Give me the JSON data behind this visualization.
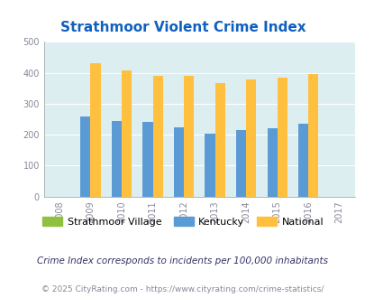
{
  "title": "Strathmoor Violent Crime Index",
  "years": [
    2008,
    2009,
    2010,
    2011,
    2012,
    2013,
    2014,
    2015,
    2016,
    2017
  ],
  "kentucky": [
    null,
    260,
    245,
    241,
    225,
    203,
    215,
    221,
    234,
    null
  ],
  "national": [
    null,
    432,
    407,
    390,
    390,
    368,
    379,
    384,
    397,
    null
  ],
  "strathmoor": [
    null,
    null,
    null,
    null,
    null,
    null,
    null,
    null,
    null,
    null
  ],
  "bar_width": 0.32,
  "ylim": [
    0,
    500
  ],
  "yticks": [
    0,
    100,
    200,
    300,
    400,
    500
  ],
  "color_strathmoor": "#90c040",
  "color_kentucky": "#5b9bd5",
  "color_national": "#ffc040",
  "bg_color": "#ddeef0",
  "plot_bg": "#ddeef0",
  "title_color": "#1060c0",
  "legend_labels": [
    "Strathmoor Village",
    "Kentucky",
    "National"
  ],
  "footnote1": "Crime Index corresponds to incidents per 100,000 inhabitants",
  "footnote2": "© 2025 CityRating.com - https://www.cityrating.com/crime-statistics/",
  "footnote1_color": "#333366",
  "footnote2_color": "#888899",
  "grid_color": "#ffffff",
  "axis_color": "#aaaaaa",
  "tick_color": "#888899"
}
